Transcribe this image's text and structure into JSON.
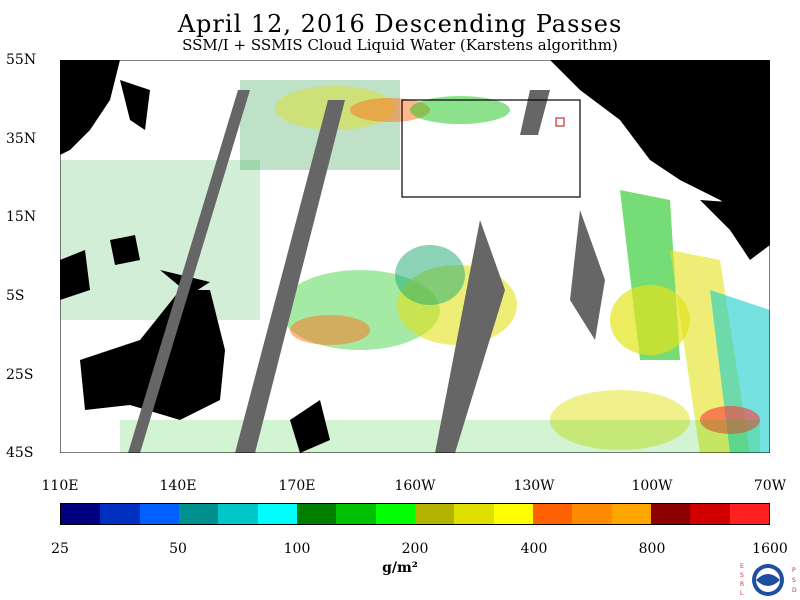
{
  "title": "April 12, 2016  Descending Passes",
  "subtitle": "SSM/I + SSMIS Cloud Liquid Water (Karstens algorithm)",
  "map": {
    "lat_labels": [
      "55N",
      "35N",
      "15N",
      "5S",
      "25S",
      "45S"
    ],
    "lon_labels": [
      "110E",
      "140E",
      "170E",
      "160W",
      "130W",
      "100W",
      "70W"
    ]
  },
  "colorbar": {
    "colors": [
      "#000080",
      "#0030c0",
      "#0060ff",
      "#009090",
      "#00c8c8",
      "#00ffff",
      "#008000",
      "#00c000",
      "#00ff00",
      "#b4b400",
      "#e0e000",
      "#ffff00",
      "#ff6000",
      "#ff8c00",
      "#ffa500",
      "#8b0000",
      "#d00000",
      "#ff2020"
    ],
    "labels": [
      "25",
      "50",
      "100",
      "200",
      "400",
      "800",
      "1600"
    ],
    "units": "g/m²"
  },
  "logo": {
    "left_text": "ESRL",
    "right_text": "PSD",
    "name": "noaa-logo"
  }
}
